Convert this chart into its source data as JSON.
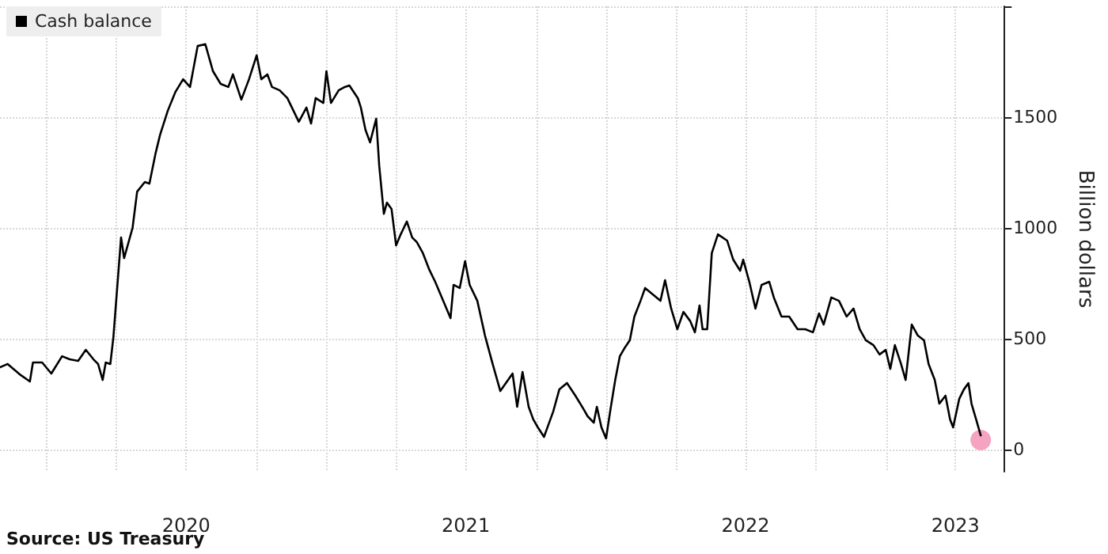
{
  "chart_data": {
    "type": "line",
    "ylabel": "Billion dollars",
    "legend": "top left",
    "grid": true,
    "marker": "none",
    "line_style": "solid",
    "annotations": [
      "Source: US Treasury"
    ],
    "ylim": [
      -100,
      2000
    ],
    "yticks": [
      0,
      500,
      1000,
      1500,
      {
        "value": 2000,
        "label": null
      }
    ],
    "xlim": [
      "2019-11-01",
      "2023-06-03"
    ],
    "xticks": [
      {
        "value": "2020-01-01",
        "label": null
      },
      {
        "value": "2020-04-01",
        "label": null
      },
      {
        "value": "2020-07-01",
        "label": "2020"
      },
      {
        "value": "2020-10-01",
        "label": null
      },
      {
        "value": "2021-01-01",
        "label": null
      },
      {
        "value": "2021-04-01",
        "label": null
      },
      {
        "value": "2021-07-01",
        "label": "2021"
      },
      {
        "value": "2021-10-01",
        "label": null
      },
      {
        "value": "2022-01-01",
        "label": null
      },
      {
        "value": "2022-04-01",
        "label": null
      },
      {
        "value": "2022-07-01",
        "label": "2022"
      },
      {
        "value": "2022-10-01",
        "label": null
      },
      {
        "value": "2023-01-01",
        "label": null
      },
      {
        "value": "2023-04-01",
        "label": "2023"
      }
    ],
    "series": [
      {
        "name": "Cash balance",
        "color": "#000000",
        "x": [
          "2019-11-01",
          "2019-11-11",
          "2019-11-28",
          "2019-12-10",
          "2019-12-14",
          "2019-12-26",
          "2020-01-07",
          "2020-01-21",
          "2020-01-31",
          "2020-02-11",
          "2020-02-21",
          "2020-03-02",
          "2020-03-08",
          "2020-03-14",
          "2020-03-18",
          "2020-03-24",
          "2020-03-28",
          "2020-04-07",
          "2020-04-11",
          "2020-04-22",
          "2020-04-28",
          "2020-05-08",
          "2020-05-14",
          "2020-05-22",
          "2020-05-28",
          "2020-06-07",
          "2020-06-17",
          "2020-06-27",
          "2020-07-06",
          "2020-07-16",
          "2020-07-26",
          "2020-08-05",
          "2020-08-15",
          "2020-08-25",
          "2020-08-31",
          "2020-09-11",
          "2020-09-21",
          "2020-10-01",
          "2020-10-07",
          "2020-10-15",
          "2020-10-21",
          "2020-10-31",
          "2020-11-10",
          "2020-11-25",
          "2020-12-05",
          "2020-12-11",
          "2020-12-17",
          "2020-12-27",
          "2020-12-31",
          "2021-01-06",
          "2021-01-16",
          "2021-01-24",
          "2021-01-30",
          "2021-02-10",
          "2021-02-14",
          "2021-02-20",
          "2021-02-26",
          "2021-03-06",
          "2021-03-10",
          "2021-03-16",
          "2021-03-20",
          "2021-03-26",
          "2021-04-01",
          "2021-04-07",
          "2021-04-15",
          "2021-04-22",
          "2021-04-28",
          "2021-05-06",
          "2021-05-14",
          "2021-05-22",
          "2021-06-11",
          "2021-06-15",
          "2021-06-23",
          "2021-06-30",
          "2021-07-06",
          "2021-07-16",
          "2021-07-26",
          "2021-08-05",
          "2021-08-15",
          "2021-08-31",
          "2021-09-06",
          "2021-09-13",
          "2021-09-21",
          "2021-09-27",
          "2021-10-03",
          "2021-10-11",
          "2021-10-17",
          "2021-10-23",
          "2021-10-31",
          "2021-11-10",
          "2021-11-21",
          "2021-12-01",
          "2021-12-07",
          "2021-12-15",
          "2021-12-19",
          "2021-12-25",
          "2021-12-31",
          "2022-01-06",
          "2022-01-12",
          "2022-01-18",
          "2022-01-24",
          "2022-01-31",
          "2022-02-06",
          "2022-02-14",
          "2022-02-20",
          "2022-03-02",
          "2022-03-12",
          "2022-03-18",
          "2022-03-26",
          "2022-04-03",
          "2022-04-11",
          "2022-04-20",
          "2022-04-26",
          "2022-05-02",
          "2022-05-06",
          "2022-05-12",
          "2022-05-18",
          "2022-05-26",
          "2022-06-07",
          "2022-06-15",
          "2022-06-24",
          "2022-06-28",
          "2022-07-06",
          "2022-07-14",
          "2022-07-22",
          "2022-08-01",
          "2022-08-07",
          "2022-08-17",
          "2022-08-27",
          "2022-09-07",
          "2022-09-17",
          "2022-09-27",
          "2022-10-05",
          "2022-10-11",
          "2022-10-21",
          "2022-10-31",
          "2022-11-10",
          "2022-11-19",
          "2022-11-27",
          "2022-12-05",
          "2022-12-15",
          "2022-12-23",
          "2022-12-31",
          "2023-01-06",
          "2023-01-12",
          "2023-01-20",
          "2023-01-26",
          "2023-02-03",
          "2023-02-11",
          "2023-02-19",
          "2023-02-25",
          "2023-03-05",
          "2023-03-11",
          "2023-03-19",
          "2023-03-25",
          "2023-03-29",
          "2023-04-06",
          "2023-04-12",
          "2023-04-18",
          "2023-04-22",
          "2023-04-28",
          "2023-05-04"
        ],
        "values": [
          371,
          386,
          336,
          307,
          393,
          393,
          343,
          421,
          407,
          400,
          450,
          407,
          386,
          314,
          393,
          386,
          507,
          957,
          864,
          1000,
          1164,
          1207,
          1200,
          1336,
          1421,
          1529,
          1614,
          1671,
          1636,
          1821,
          1829,
          1707,
          1650,
          1636,
          1693,
          1579,
          1671,
          1779,
          1671,
          1693,
          1636,
          1621,
          1586,
          1479,
          1543,
          1471,
          1586,
          1564,
          1707,
          1564,
          1621,
          1636,
          1643,
          1586,
          1543,
          1443,
          1386,
          1493,
          1279,
          1064,
          1114,
          1086,
          921,
          971,
          1029,
          957,
          936,
          886,
          814,
          757,
          593,
          743,
          729,
          850,
          743,
          671,
          514,
          386,
          264,
          343,
          193,
          350,
          193,
          136,
          100,
          57,
          114,
          171,
          271,
          300,
          243,
          186,
          150,
          121,
          193,
          100,
          50,
          186,
          314,
          421,
          457,
          493,
          600,
          671,
          729,
          700,
          671,
          764,
          636,
          543,
          621,
          579,
          529,
          650,
          543,
          543,
          886,
          971,
          943,
          857,
          807,
          857,
          757,
          636,
          743,
          757,
          686,
          600,
          600,
          543,
          543,
          529,
          614,
          564,
          686,
          671,
          600,
          636,
          543,
          493,
          471,
          429,
          450,
          364,
          471,
          386,
          314,
          564,
          514,
          493,
          386,
          314,
          207,
          243,
          136,
          100,
          229,
          271,
          300,
          207,
          136,
          64
        ]
      },
      {
        "type": "scatter",
        "color": "#f4a3c0",
        "marker": "circle",
        "x": [
          "2023-05-04"
        ],
        "values": [
          43
        ]
      }
    ]
  }
}
